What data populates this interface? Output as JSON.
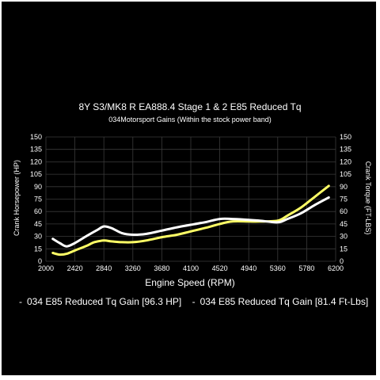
{
  "chart_data": {
    "type": "line",
    "title": "8Y S3/MK8 R EA888.4 Stage 1 & 2 E85 Reduced Tq",
    "subtitle": "034Motorsport Gains (Within the stock power band)",
    "xlabel": "Engine Speed (RPM)",
    "ylabel_left": "Crank Horsepower (HP)",
    "ylabel_right": "Crank Torque (FT-LBS)",
    "xlim": [
      2000,
      6200
    ],
    "ylim": [
      0,
      150
    ],
    "x_ticks": [
      "2000",
      "2420",
      "2840",
      "3260",
      "3680",
      "4100",
      "4520",
      "4940",
      "5360",
      "5780",
      "6200"
    ],
    "y_ticks_left": [
      "0",
      "15",
      "30",
      "45",
      "60",
      "75",
      "90",
      "105",
      "120",
      "135",
      "150"
    ],
    "y_ticks_right": [
      "0",
      "15",
      "30",
      "45",
      "60",
      "75",
      "90",
      "105",
      "120",
      "135",
      "150"
    ],
    "grid": true,
    "colors": {
      "hp": "#ffff66",
      "tq": "#ffffff"
    },
    "series": [
      {
        "name": "034 E85 Reduced Tq Gain [96.3 HP]",
        "axis": "left",
        "x": [
          2100,
          2200,
          2300,
          2420,
          2600,
          2700,
          2840,
          2950,
          3100,
          3260,
          3450,
          3680,
          3900,
          4100,
          4300,
          4520,
          4700,
          4940,
          5100,
          5360,
          5500,
          5700,
          5900,
          6100
        ],
        "y": [
          10,
          8,
          9,
          13,
          19,
          23,
          25,
          24,
          23,
          23,
          25,
          29,
          32,
          36,
          40,
          45,
          48,
          48,
          48,
          49,
          55,
          65,
          78,
          91
        ]
      },
      {
        "name": "034 E85 Reduced Tq Gain [81.4 Ft-Lbs]",
        "axis": "right",
        "x": [
          2100,
          2200,
          2300,
          2420,
          2600,
          2750,
          2840,
          2950,
          3100,
          3260,
          3450,
          3680,
          3900,
          4100,
          4300,
          4520,
          4700,
          4940,
          5100,
          5360,
          5500,
          5700,
          5900,
          6100
        ],
        "y": [
          27,
          22,
          18,
          22,
          31,
          38,
          42,
          40,
          34,
          32,
          33,
          37,
          41,
          44,
          47,
          51,
          51,
          50,
          49,
          47,
          51,
          58,
          68,
          77
        ]
      }
    ]
  },
  "legend_dash": "-"
}
